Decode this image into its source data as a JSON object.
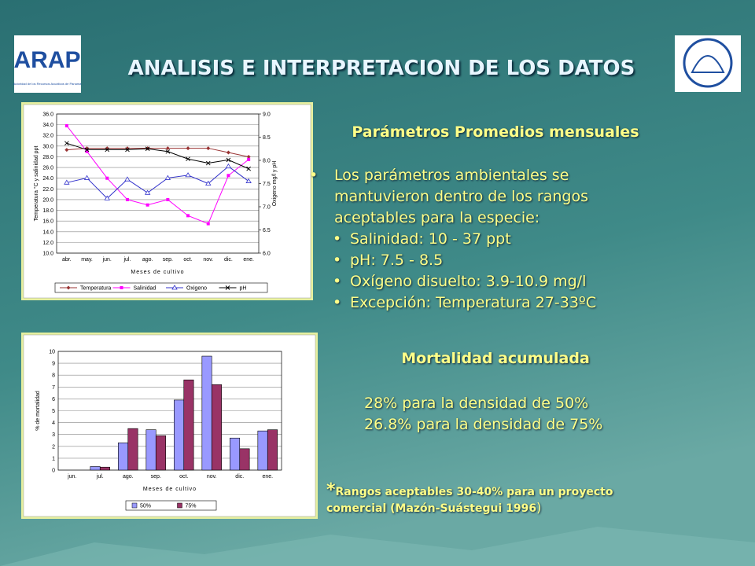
{
  "slide": {
    "title": "ANALISIS E INTERPRETACION DE LOS DATOS",
    "logo_left": {
      "name": "ARAP",
      "subtitle": "Autoridad de los Recursos Acuáticos de Panamá"
    },
    "section1": {
      "heading": "Parámetros Promedios mensuales",
      "intro": "Los parámetros ambientales se mantuvieron dentro de los rangos aceptables para la especie:",
      "bullets": [
        "Salinidad: 10 - 37 ppt",
        "pH: 7.5 - 8.5",
        "Oxígeno disuelto: 3.9-10.9 mg/l",
        "Excepción: Temperatura 27-33ºC"
      ]
    },
    "section2": {
      "heading": "Mortalidad acumulada",
      "lines": [
        "28% para la densidad de 50%",
        "26.8% para la densidad de 75%"
      ]
    },
    "footnote": {
      "mark": "*",
      "text": "Rangos aceptables 30-40% para un proyecto comercial (Mazón-Suástegui 1996",
      "close": ")"
    }
  },
  "chart_data": [
    {
      "type": "line",
      "x_label": "Meses de cultivo",
      "y_label": "Temperatura °C y salinidad ppt",
      "y2_label": "Oxigeno mg/l y pH",
      "categories": [
        "abr.",
        "may.",
        "jun.",
        "jul.",
        "ago.",
        "sep.",
        "oct.",
        "nov.",
        "dic.",
        "ene."
      ],
      "ylim": [
        10,
        36
      ],
      "yticks": [
        {
          "value": 10,
          "label": "10.0"
        },
        {
          "value": 12,
          "label": "12.0"
        },
        {
          "value": 14,
          "label": "14.0"
        },
        {
          "value": 16,
          "label": "16.0"
        },
        {
          "value": 18,
          "label": "18.0"
        },
        {
          "value": 20,
          "label": "20.0"
        },
        {
          "value": 22,
          "label": "22.0"
        },
        {
          "value": 24,
          "label": "24.0"
        },
        {
          "value": 26,
          "label": "26.0"
        },
        {
          "value": 28,
          "label": "28.0"
        },
        {
          "value": 30,
          "label": "30.0"
        },
        {
          "value": 32,
          "label": "32.0"
        },
        {
          "value": 34,
          "label": "34.0"
        },
        {
          "value": 36,
          "label": "36.0"
        }
      ],
      "y2lim": [
        6,
        9
      ],
      "y2ticks": [
        {
          "value": 6,
          "label": "6.0"
        },
        6.5,
        {
          "value": 7,
          "label": "7.0"
        },
        7.5,
        {
          "value": 8,
          "label": "8.0"
        },
        8.5,
        {
          "value": 9,
          "label": "9.0"
        }
      ],
      "grid": true,
      "series": [
        {
          "name": "Temperatura",
          "color": "#993333",
          "marker": "diamond",
          "values": [
            29.3,
            29.6,
            29.6,
            29.6,
            29.6,
            29.6,
            29.6,
            29.6,
            28.8,
            28.0
          ]
        },
        {
          "name": "Salinidad",
          "color": "#ff00ff",
          "marker": "square",
          "values": [
            33.8,
            29.0,
            24.0,
            20.0,
            19.0,
            20.0,
            17.0,
            15.5,
            24.5,
            27.5
          ]
        },
        {
          "name": "Oxigeno",
          "color": "#3333cc",
          "marker": "triangle",
          "axis": "y2",
          "values": [
            7.52,
            7.62,
            7.18,
            7.59,
            7.3,
            7.62,
            7.68,
            7.5,
            7.87,
            7.55
          ]
        },
        {
          "name": "pH",
          "color": "#000000",
          "marker": "cross",
          "axis": "y2",
          "values": [
            8.37,
            8.23,
            8.23,
            8.23,
            8.25,
            8.19,
            8.03,
            7.94,
            8.01,
            7.82
          ]
        }
      ]
    },
    {
      "type": "bar",
      "x_label": "Meses de cultivo",
      "y_label": "% de mortalidad",
      "categories": [
        "jun.",
        "jul.",
        "ago.",
        "sep.",
        "oct.",
        "nov.",
        "dic.",
        "ene."
      ],
      "ylim": [
        0,
        10
      ],
      "yticks": [
        0,
        1,
        2,
        3,
        4,
        5,
        6,
        7,
        8,
        9,
        10
      ],
      "grid": true,
      "series": [
        {
          "name": "50%",
          "color": "#9999ff",
          "values": [
            0,
            0.3,
            2.3,
            3.4,
            5.9,
            9.6,
            2.7,
            3.3
          ]
        },
        {
          "name": "75%",
          "color": "#993366",
          "values": [
            0,
            0.25,
            3.5,
            2.9,
            7.6,
            7.2,
            1.8,
            3.4
          ]
        }
      ]
    }
  ]
}
